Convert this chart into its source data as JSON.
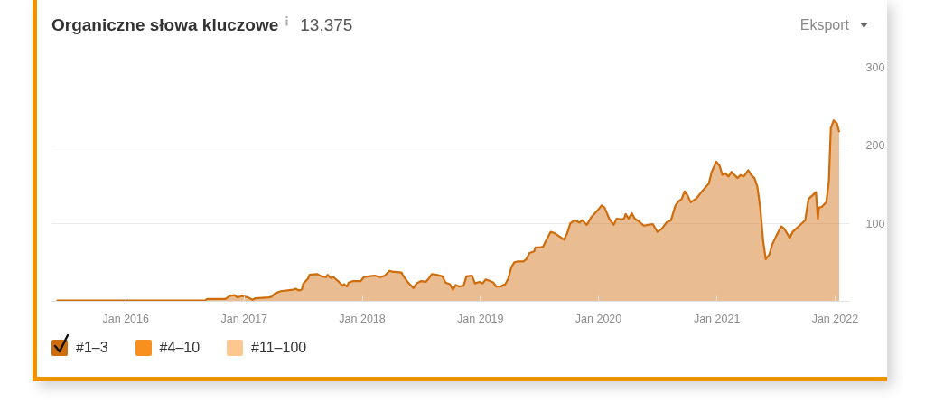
{
  "chart_data": {
    "type": "area",
    "title": "Organiczne słowa kluczowe",
    "subtitle": "13,375",
    "annotations": [
      "Eksport"
    ],
    "x": [
      "2015-06-01",
      "2016-09-01",
      "2016-09-09",
      "2016-11-04",
      "2016-11-18",
      "2016-12-02",
      "2016-12-11",
      "2016-12-25",
      "2017-01-13",
      "2017-01-27",
      "2017-02-05",
      "2017-03-18",
      "2017-03-27",
      "2017-04-06",
      "2017-04-24",
      "2017-06-01",
      "2017-06-10",
      "2017-06-19",
      "2017-06-28",
      "2017-07-03",
      "2017-07-17",
      "2017-07-22",
      "2017-08-14",
      "2017-08-28",
      "2017-09-11",
      "2017-09-16",
      "2017-09-25",
      "2017-10-04",
      "2017-10-18",
      "2017-11-01",
      "2017-11-06",
      "2017-11-15",
      "2017-11-20",
      "2017-12-04",
      "2017-12-27",
      "2018-01-06",
      "2018-01-20",
      "2018-02-08",
      "2018-02-26",
      "2018-03-12",
      "2018-03-26",
      "2018-04-04",
      "2018-05-02",
      "2018-05-07",
      "2018-05-21",
      "2018-06-08",
      "2018-06-18",
      "2018-07-02",
      "2018-07-16",
      "2018-07-25",
      "2018-08-04",
      "2018-08-18",
      "2018-09-06",
      "2018-09-15",
      "2018-09-29",
      "2018-10-08",
      "2018-10-17",
      "2018-10-27",
      "2018-11-10",
      "2018-11-19",
      "2018-12-06",
      "2018-12-15",
      "2018-12-29",
      "2019-01-08",
      "2019-01-17",
      "2019-01-31",
      "2019-02-10",
      "2019-02-19",
      "2019-03-05",
      "2019-03-19",
      "2019-03-28",
      "2019-04-07",
      "2019-04-16",
      "2019-04-25",
      "2019-05-14",
      "2019-05-23",
      "2019-06-02",
      "2019-06-16",
      "2019-06-20",
      "2019-07-04",
      "2019-07-14",
      "2019-07-23",
      "2019-08-06",
      "2019-08-20",
      "2019-09-03",
      "2019-09-17",
      "2019-09-26",
      "2019-10-06",
      "2019-10-20",
      "2019-11-03",
      "2019-11-12",
      "2019-11-26",
      "2019-12-10",
      "2019-12-28",
      "2020-01-11",
      "2020-01-20",
      "2020-02-03",
      "2020-02-17",
      "2020-02-26",
      "2020-03-11",
      "2020-03-20",
      "2020-03-25",
      "2020-04-03",
      "2020-04-13",
      "2020-04-22",
      "2020-05-06",
      "2020-05-20",
      "2020-06-03",
      "2020-06-17",
      "2020-07-01",
      "2020-07-15",
      "2020-07-29",
      "2020-08-12",
      "2020-08-26",
      "2020-09-04",
      "2020-09-14",
      "2020-09-23",
      "2020-10-02",
      "2020-10-12",
      "2020-10-30",
      "2020-11-18",
      "2020-12-07",
      "2020-12-16",
      "2020-12-30",
      "2021-01-09",
      "2021-01-18",
      "2021-01-27",
      "2021-02-06",
      "2021-02-15",
      "2021-02-24",
      "2021-03-06",
      "2021-03-15",
      "2021-03-25",
      "2021-04-08",
      "2021-04-17",
      "2021-04-27",
      "2021-05-06",
      "2021-05-15",
      "2021-05-24",
      "2021-06-01",
      "2021-06-12",
      "2021-06-21",
      "2021-07-05",
      "2021-07-19",
      "2021-07-28",
      "2021-08-06",
      "2021-08-14",
      "2021-08-23",
      "2021-09-13",
      "2021-10-01",
      "2021-10-11",
      "2021-11-03",
      "2021-11-09",
      "2021-11-12",
      "2021-11-21",
      "2021-12-05",
      "2021-12-13",
      "2021-12-19",
      "2021-12-28",
      "2022-01-07",
      "2022-01-14"
    ],
    "series": [
      {
        "name": "#1–3",
        "color": "#cf6c0b",
        "values": [
          1,
          1,
          3,
          3,
          7,
          8,
          5,
          7,
          5,
          2,
          4,
          5,
          6,
          10,
          13,
          15,
          16,
          14,
          15,
          23,
          29,
          34,
          35,
          32,
          31,
          34,
          30,
          31,
          26,
          20,
          22,
          19,
          24,
          26,
          26,
          31,
          32,
          33,
          31,
          33,
          39,
          38,
          37,
          33,
          25,
          17,
          23,
          26,
          25,
          29,
          35,
          34,
          32,
          24,
          22,
          15,
          21,
          19,
          20,
          32,
          33,
          23,
          25,
          23,
          28,
          26,
          24,
          19,
          19,
          22,
          29,
          44,
          50,
          51,
          51,
          54,
          62,
          64,
          69,
          69,
          70,
          78,
          89,
          87,
          83,
          79,
          87,
          100,
          104,
          101,
          104,
          98,
          108,
          116,
          123,
          120,
          106,
          98,
          106,
          105,
          106,
          112,
          106,
          113,
          106,
          102,
          97,
          98,
          99,
          89,
          93,
          101,
          104,
          123,
          128,
          131,
          141,
          136,
          127,
          132,
          142,
          151,
          166,
          179,
          174,
          162,
          164,
          160,
          166,
          162,
          158,
          162,
          160,
          168,
          162,
          158,
          147,
          120,
          77,
          54,
          60,
          73,
          85,
          96,
          93,
          87,
          81,
          89,
          97,
          104,
          131,
          140,
          106,
          120,
          121,
          127,
          154,
          222,
          232,
          228,
          217
        ]
      },
      {
        "name": "#4–10",
        "color": "#f7901e",
        "values": [
          null,
          null,
          null,
          null,
          null,
          null,
          null,
          null,
          null,
          null,
          null,
          null,
          null,
          null,
          null,
          null,
          null,
          null,
          null,
          null,
          null,
          null,
          null,
          null,
          null,
          null,
          null,
          null,
          null,
          null,
          null,
          null,
          null,
          null,
          null,
          null,
          null,
          null,
          null,
          null,
          null,
          null,
          null,
          null,
          null,
          null,
          null,
          null,
          null,
          null,
          null,
          null,
          null,
          null,
          null,
          null,
          null,
          null,
          null,
          null,
          null,
          null,
          null,
          null,
          null,
          null,
          null,
          null,
          null,
          null,
          null,
          null,
          null,
          null,
          null,
          null,
          null,
          null,
          null,
          null,
          null,
          null,
          null,
          null,
          null,
          null,
          null,
          null,
          null,
          null,
          null,
          null,
          null,
          null,
          null,
          null,
          null,
          null,
          null,
          null,
          null,
          null,
          null,
          null,
          null,
          null,
          null,
          null,
          null,
          null,
          null,
          null,
          null,
          null,
          null,
          null,
          null,
          null,
          null,
          null,
          null,
          null,
          null,
          null,
          null,
          null,
          null,
          null,
          null,
          null,
          null,
          null,
          null,
          null,
          null,
          null,
          null,
          null,
          null,
          null,
          null,
          null,
          null,
          null,
          null,
          null,
          null,
          null,
          null,
          null,
          null,
          null,
          null,
          null,
          null,
          null,
          null,
          null,
          null,
          null,
          null
        ]
      },
      {
        "name": "#11–100",
        "color": "#fdc88f",
        "values": [
          null,
          null,
          null,
          null,
          null,
          null,
          null,
          null,
          null,
          null,
          null,
          null,
          null,
          null,
          null,
          null,
          null,
          null,
          null,
          null,
          null,
          null,
          null,
          null,
          null,
          null,
          null,
          null,
          null,
          null,
          null,
          null,
          null,
          null,
          null,
          null,
          null,
          null,
          null,
          null,
          null,
          null,
          null,
          null,
          null,
          null,
          null,
          null,
          null,
          null,
          null,
          null,
          null,
          null,
          null,
          null,
          null,
          null,
          null,
          null,
          null,
          null,
          null,
          null,
          null,
          null,
          null,
          null,
          null,
          null,
          null,
          null,
          null,
          null,
          null,
          null,
          null,
          null,
          null,
          null,
          null,
          null,
          null,
          null,
          null,
          null,
          null,
          null,
          null,
          null,
          null,
          null,
          null,
          null,
          null,
          null,
          null,
          null,
          null,
          null,
          null,
          null,
          null,
          null,
          null,
          null,
          null,
          null,
          null,
          null,
          null,
          null,
          null,
          null,
          null,
          null,
          null,
          null,
          null,
          null,
          null,
          null,
          null,
          null,
          null,
          null,
          null,
          null,
          null,
          null,
          null,
          null,
          null,
          null,
          null,
          null,
          null,
          null,
          null,
          null,
          null,
          null,
          null,
          null,
          null,
          null,
          null,
          null,
          null,
          null,
          null,
          null,
          null,
          null,
          null,
          null,
          null,
          null,
          null,
          null,
          null
        ]
      }
    ],
    "xlim": [
      "2015-05-15",
      "2022-02-15"
    ],
    "xticks": [
      {
        "value": "2016-01",
        "label": "Jan 2016"
      },
      {
        "value": "2017-01",
        "label": "Jan 2017"
      },
      {
        "value": "2018-01",
        "label": "Jan 2018"
      },
      {
        "value": "2019-01",
        "label": "Jan 2019"
      },
      {
        "value": "2020-01",
        "label": "Jan 2020"
      },
      {
        "value": "2021-01",
        "label": "Jan 2021"
      },
      {
        "value": "2022-01",
        "label": "Jan 2022"
      }
    ],
    "ylim": [
      0,
      300
    ],
    "yticks": [
      100,
      200,
      300
    ],
    "grid": "y",
    "legend": "bottom left"
  }
}
